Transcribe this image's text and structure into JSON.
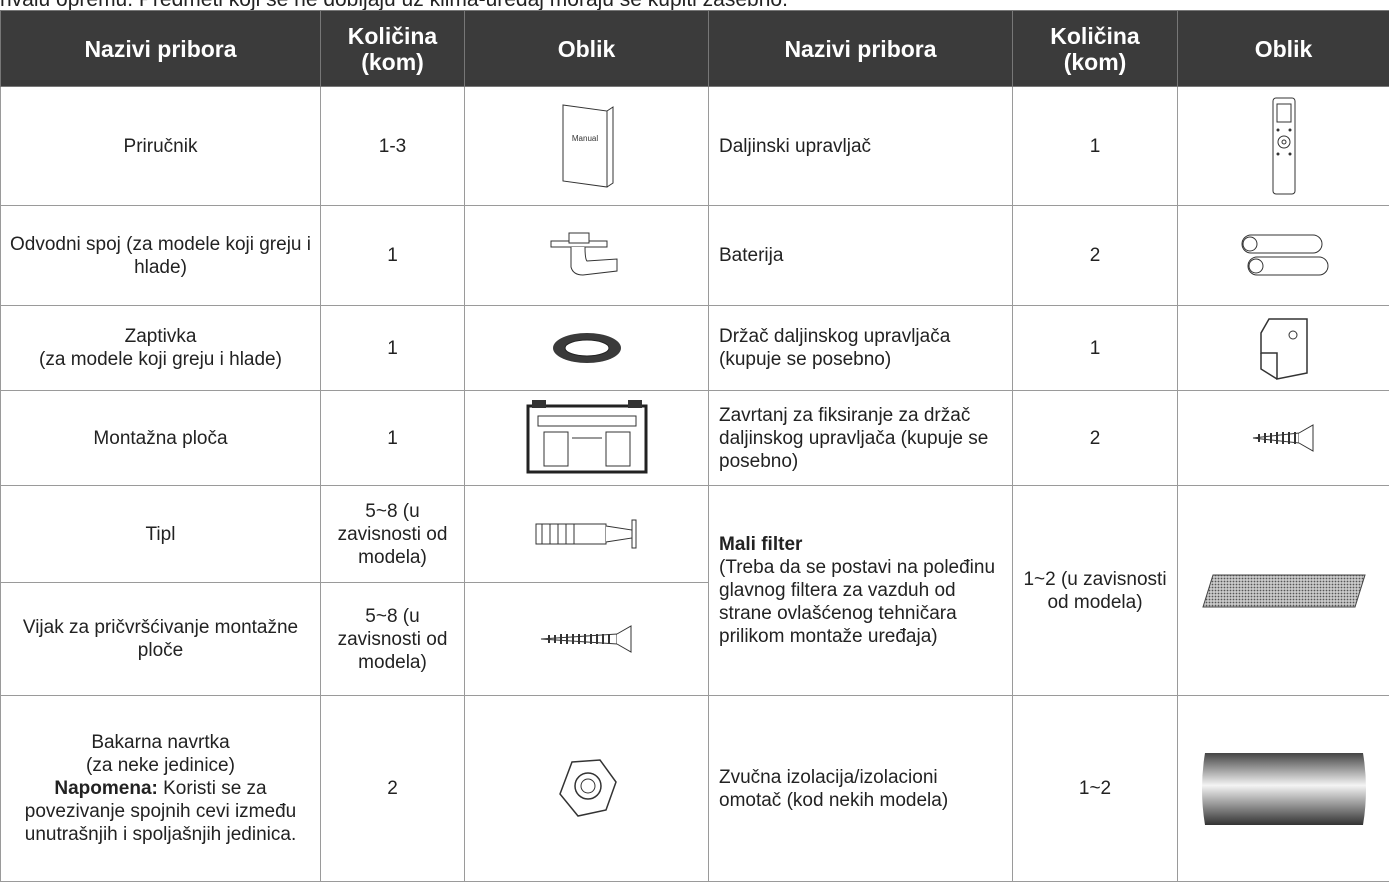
{
  "intro": "nvalu opremu. Predmeti koji se ne dobijaju uz klima-uređaj moraju se kupiti zasebno.",
  "headers": [
    "Nazivi pribora",
    "Količina (kom)",
    "Oblik",
    "Nazivi pribora",
    "Količina (kom)",
    "Oblik"
  ],
  "manual_icon_label": "Manual",
  "rows": [
    [
      "Priručnik",
      "1-3",
      "Daljinski upravljač",
      "1"
    ],
    [
      "Odvodni spoj (za modele koji greju i hlade)",
      "1",
      "Baterija",
      "2"
    ],
    [
      "Zaptivka",
      "(za modele koji greju i hlade)",
      "1",
      "Držač daljinskog upravljača (kupuje se posebno)",
      "1"
    ],
    [
      "Montažna ploča",
      "1",
      "Zavrtanj za fiksiranje za držač daljinskog upravljača (kupuje se posebno)",
      "2"
    ],
    [
      "Tipl",
      "5~8 (u zavisnosti od modela)",
      "Mali filter",
      "(Treba da se postavi na poleđinu glavnog filtera za vazduh od strane ovlašćenog tehničara prilikom montaže uređaja)",
      "1~2 (u zavisnosti od modela)"
    ],
    [
      "Vijak za pričvršćivanje montažne ploče",
      "5~8 (u zavisnosti od modela)"
    ],
    [
      "Bakarna navrtka",
      "(za neke jedinice)",
      "Napomena:",
      "Koristi se za povezivanje spojnih cevi između unutrašnjih i spoljašnjih jedinica.",
      "2",
      "Zvučna izolacija/izolacioni omotač (kod nekih modela)",
      "1~2"
    ]
  ]
}
